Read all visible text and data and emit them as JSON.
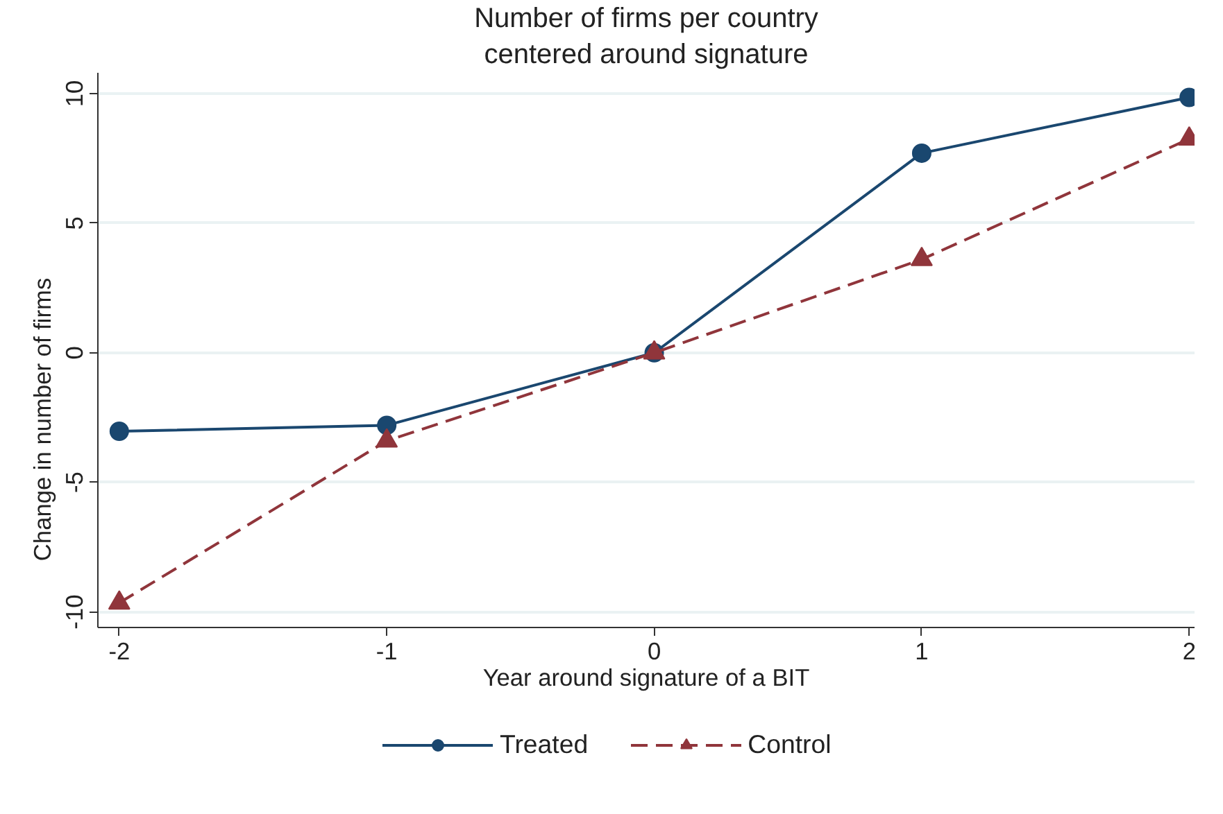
{
  "chart_data": {
    "type": "line",
    "title": "Number of firms per country",
    "subtitle": "centered around signature",
    "xlabel": "Year around signature of a BIT",
    "ylabel": "Change in number of firms",
    "x": [
      -2,
      -1,
      0,
      1,
      2
    ],
    "series": [
      {
        "name": "Treated",
        "color": "#1a476f",
        "values": [
          -3.03,
          -2.8,
          0,
          7.7,
          9.85
        ],
        "marker": "circle",
        "line_style": "solid"
      },
      {
        "name": "Control",
        "color": "#90353b",
        "values": [
          -9.65,
          -3.4,
          0,
          3.6,
          8.25
        ],
        "marker": "triangle",
        "line_style": "dashed"
      }
    ],
    "xlim": [
      -2.08,
      2.02
    ],
    "ylim": [
      -10.6,
      10.8
    ],
    "xticks": [
      -2,
      -1,
      0,
      1,
      2
    ],
    "yticks": [
      -10,
      -5,
      0,
      5,
      10
    ],
    "grid": "y",
    "legend": "bottom"
  }
}
